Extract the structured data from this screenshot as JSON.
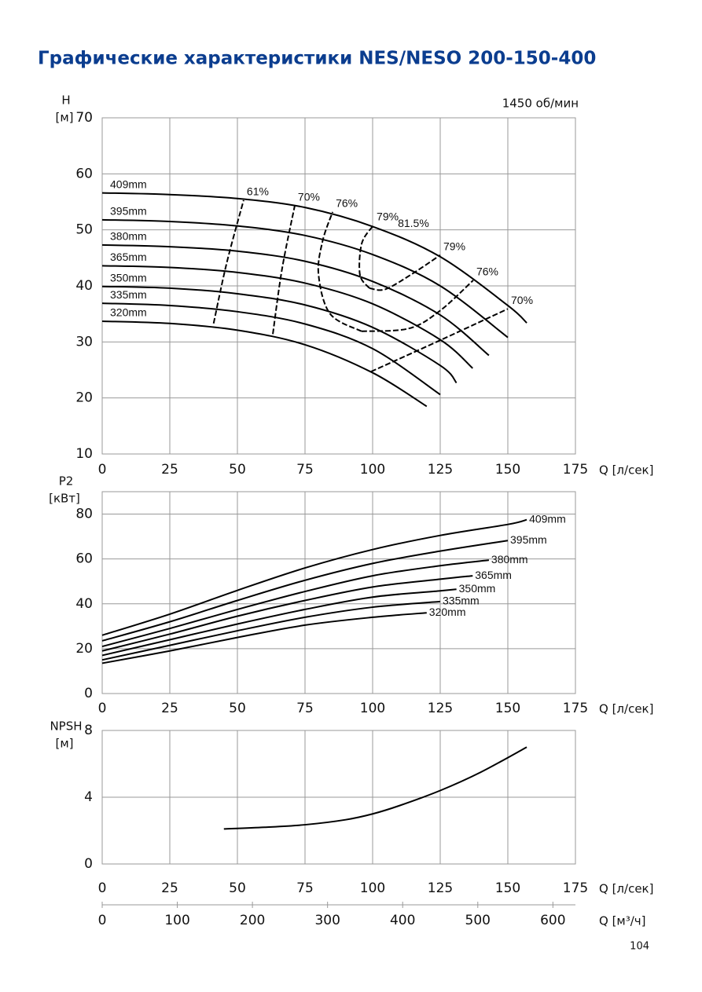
{
  "title": "Графические характеристики NES/NESO 200-150-400",
  "page_number": 104,
  "chart_data": [
    {
      "type": "line",
      "annotation": "1450 об/мин",
      "ylabel": "H",
      "yunit": "[м]",
      "xlabel": "Q [л/сек]",
      "xlim": [
        0,
        175
      ],
      "xticks": [
        0,
        25,
        50,
        75,
        100,
        125,
        150,
        175
      ],
      "ylim": [
        10,
        70
      ],
      "yticks": [
        10,
        20,
        30,
        40,
        50,
        60,
        70
      ],
      "grid": true,
      "color": "#000000",
      "label_position": "start",
      "series": [
        {
          "name": "409mm",
          "x": [
            0,
            25,
            50,
            75,
            100,
            125,
            150,
            157
          ],
          "values": [
            56.6,
            56.3,
            55.6,
            54.0,
            50.6,
            45.2,
            36.5,
            33.4
          ]
        },
        {
          "name": "395mm",
          "x": [
            0,
            25,
            50,
            75,
            100,
            125,
            150
          ],
          "values": [
            51.8,
            51.5,
            50.7,
            49.0,
            45.6,
            40.0,
            30.8
          ]
        },
        {
          "name": "380mm",
          "x": [
            0,
            25,
            50,
            75,
            100,
            125,
            143
          ],
          "values": [
            47.3,
            47.0,
            46.2,
            44.4,
            40.8,
            34.8,
            27.6
          ]
        },
        {
          "name": "365mm",
          "x": [
            0,
            25,
            50,
            75,
            100,
            125,
            137
          ],
          "values": [
            43.6,
            43.3,
            42.4,
            40.5,
            36.8,
            30.4,
            25.3
          ]
        },
        {
          "name": "350mm",
          "x": [
            0,
            25,
            50,
            75,
            100,
            125,
            131
          ],
          "values": [
            39.9,
            39.6,
            38.6,
            36.6,
            32.6,
            25.8,
            22.7
          ]
        },
        {
          "name": "335mm",
          "x": [
            0,
            25,
            50,
            75,
            100,
            125
          ],
          "values": [
            36.9,
            36.5,
            35.4,
            33.2,
            28.8,
            20.6
          ]
        },
        {
          "name": "320mm",
          "x": [
            0,
            25,
            50,
            75,
            100,
            120
          ],
          "values": [
            33.7,
            33.3,
            32.1,
            29.5,
            24.5,
            18.5
          ]
        }
      ],
      "efficiency": [
        {
          "name": "61%",
          "x": [
            41.2,
            46,
            52.3
          ],
          "values": [
            33.3,
            44,
            55.3
          ]
        },
        {
          "name": "70%",
          "x": [
            63.1,
            66.5,
            71.2
          ],
          "values": [
            31.4,
            43,
            54.3
          ]
        },
        {
          "name": "76%",
          "x": [
            95.9,
            84.3,
            80,
            81.5,
            85.2
          ],
          "values": [
            31.9,
            35.0,
            42.0,
            48,
            53.2
          ]
        },
        {
          "name": "79%",
          "x": [
            98.8,
            95.3,
            96,
            100.3
          ],
          "values": [
            39.6,
            42,
            47.6,
            50.8
          ]
        },
        {
          "name": "81.5%",
          "x": [
            107
          ],
          "values": [
            49.6
          ]
        },
        {
          "name": "79%",
          "x": [
            98.8,
            104.7,
            114.8,
            125
          ],
          "values": [
            39.6,
            39.4,
            42.2,
            45.5
          ]
        },
        {
          "name": "76%",
          "x": [
            95.9,
            113.4,
            125,
            137.2
          ],
          "values": [
            31.9,
            32.4,
            35.6,
            41
          ]
        },
        {
          "name": "70%",
          "x": [
            99.4,
            125,
            150
          ],
          "values": [
            24.7,
            30.3,
            35.9
          ]
        }
      ]
    },
    {
      "type": "line",
      "ylabel": "P2",
      "yunit": "[кВт]",
      "xlabel": "Q [л/сек]",
      "xlim": [
        0,
        175
      ],
      "xticks": [
        0,
        25,
        50,
        75,
        100,
        125,
        150,
        175
      ],
      "ylim": [
        0,
        90
      ],
      "yticks": [
        0,
        20,
        40,
        60,
        80
      ],
      "grid": true,
      "color": "#000000",
      "label_position": "end",
      "series": [
        {
          "name": "409mm",
          "x": [
            0,
            25,
            50,
            75,
            100,
            125,
            150,
            157
          ],
          "values": [
            26,
            35.4,
            46,
            56,
            64.2,
            70.5,
            75.4,
            77.5
          ]
        },
        {
          "name": "395mm",
          "x": [
            0,
            25,
            50,
            75,
            100,
            125,
            150
          ],
          "values": [
            23.5,
            32,
            41.5,
            50.5,
            58,
            63.5,
            68.2
          ]
        },
        {
          "name": "380mm",
          "x": [
            0,
            25,
            50,
            75,
            100,
            125,
            143
          ],
          "values": [
            21,
            29,
            37.5,
            45.5,
            52.5,
            57,
            59.5
          ]
        },
        {
          "name": "365mm",
          "x": [
            0,
            25,
            50,
            75,
            100,
            125,
            137
          ],
          "values": [
            19,
            26.5,
            34.5,
            41.5,
            47.5,
            51,
            52.5
          ]
        },
        {
          "name": "350mm",
          "x": [
            0,
            25,
            50,
            75,
            100,
            125,
            131
          ],
          "values": [
            17,
            24,
            31,
            37.5,
            43,
            45.8,
            46.5
          ]
        },
        {
          "name": "335mm",
          "x": [
            0,
            25,
            50,
            75,
            100,
            125
          ],
          "values": [
            15,
            21.5,
            28,
            34,
            38.5,
            41
          ]
        },
        {
          "name": "320mm",
          "x": [
            0,
            25,
            50,
            75,
            100,
            120
          ],
          "values": [
            13.5,
            19,
            25,
            30.5,
            34,
            36
          ]
        }
      ]
    },
    {
      "type": "line",
      "ylabel": "NPSH",
      "yunit": "[м]",
      "xlabel": "Q [л/сек]",
      "xlim": [
        0,
        175
      ],
      "xticks": [
        0,
        25,
        50,
        75,
        100,
        125,
        150,
        175
      ],
      "ylim": [
        0,
        8
      ],
      "yticks": [
        0,
        4,
        8
      ],
      "grid": true,
      "color": "#000000",
      "x2label": "Q [м³/ч]",
      "x2lim": [
        0,
        630
      ],
      "x2ticks": [
        0,
        100,
        200,
        300,
        400,
        500,
        600
      ],
      "series": [
        {
          "x": [
            45,
            60,
            75,
            90,
            100,
            110,
            125,
            140,
            157
          ],
          "values": [
            2.1,
            2.2,
            2.35,
            2.65,
            3.0,
            3.5,
            4.4,
            5.5,
            7.0
          ]
        }
      ]
    }
  ]
}
